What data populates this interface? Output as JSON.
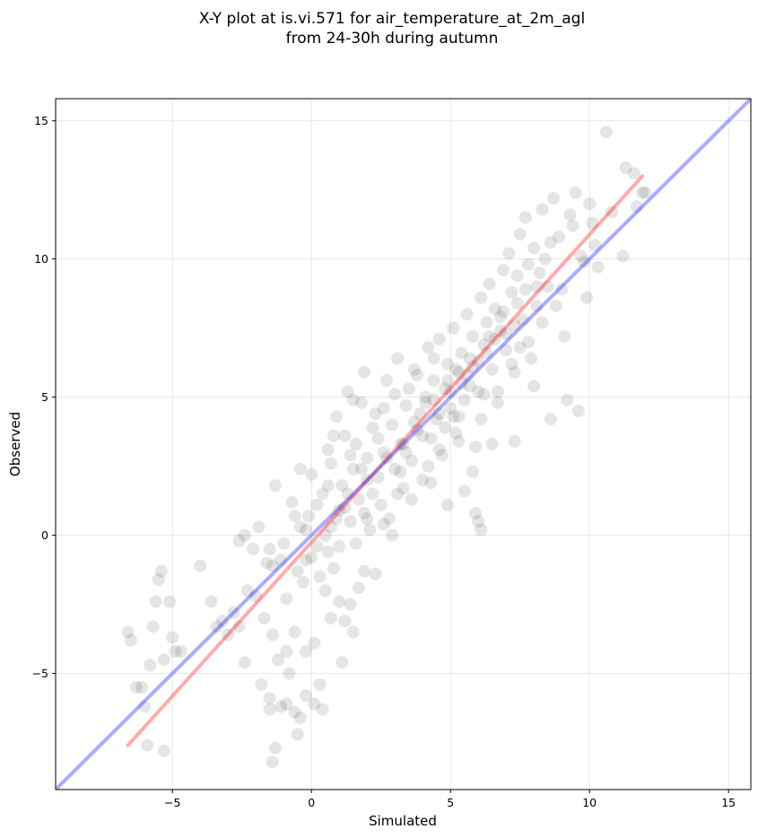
{
  "chart_data": {
    "type": "scatter",
    "title_lines": [
      "X-Y plot at is.vi.571 for air_temperature_at_2m_agl",
      "from 24-30h during autumn"
    ],
    "xlabel": "Simulated",
    "ylabel": "Observed",
    "xlim": [
      -9.2,
      15.8
    ],
    "ylim": [
      -9.2,
      15.8
    ],
    "xticks": [
      -5,
      0,
      5,
      10,
      15
    ],
    "yticks": [
      -5,
      0,
      5,
      10,
      15
    ],
    "tick_labels": [
      "−5",
      "0",
      "5",
      "10",
      "15"
    ],
    "grid": true,
    "colors": {
      "points": "#000000",
      "fit_line": "#ff0000",
      "identity_line": "#0000ff"
    },
    "fit_line": {
      "x": [
        -6.6,
        11.9
      ],
      "y": [
        -7.6,
        13.0
      ]
    },
    "identity_line": {
      "x": [
        -9.2,
        15.8
      ],
      "y": [
        -9.2,
        15.8
      ]
    },
    "points": [
      [
        -6.6,
        -3.5
      ],
      [
        -6.5,
        -3.8
      ],
      [
        -6.3,
        -5.5
      ],
      [
        -6.1,
        -5.5
      ],
      [
        -6.0,
        -6.2
      ],
      [
        -5.9,
        -7.6
      ],
      [
        -5.8,
        -4.7
      ],
      [
        -5.7,
        -3.3
      ],
      [
        -5.6,
        -2.4
      ],
      [
        -5.5,
        -1.6
      ],
      [
        -5.4,
        -1.3
      ],
      [
        -5.3,
        -7.8
      ],
      [
        -5.3,
        -4.5
      ],
      [
        -5.1,
        -2.4
      ],
      [
        -5.0,
        -3.7
      ],
      [
        -4.9,
        -4.2
      ],
      [
        -4.7,
        -4.2
      ],
      [
        -4.0,
        -1.1
      ],
      [
        -3.6,
        -2.4
      ],
      [
        -3.4,
        -3.3
      ],
      [
        -3.2,
        -3.1
      ],
      [
        -3.0,
        -3.6
      ],
      [
        -2.8,
        -2.8
      ],
      [
        -2.6,
        -3.3
      ],
      [
        -2.4,
        -4.6
      ],
      [
        -2.6,
        -0.2
      ],
      [
        -2.4,
        0.0
      ],
      [
        -2.1,
        -0.5
      ],
      [
        -1.9,
        0.3
      ],
      [
        -1.5,
        -0.5
      ],
      [
        -1.4,
        -1.1
      ],
      [
        -1.7,
        -3.0
      ],
      [
        -1.4,
        -3.6
      ],
      [
        -1.2,
        -4.5
      ],
      [
        -1.5,
        -5.9
      ],
      [
        -1.8,
        -5.4
      ],
      [
        -1.5,
        -6.3
      ],
      [
        -1.4,
        -8.2
      ],
      [
        -1.3,
        -7.7
      ],
      [
        -1.1,
        -6.2
      ],
      [
        -0.9,
        -6.1
      ],
      [
        -0.8,
        -5.0
      ],
      [
        -0.6,
        -6.4
      ],
      [
        -0.5,
        -7.2
      ],
      [
        -0.4,
        -6.6
      ],
      [
        -0.2,
        -5.8
      ],
      [
        0.1,
        -6.1
      ],
      [
        0.3,
        -5.4
      ],
      [
        0.4,
        -6.3
      ],
      [
        -0.6,
        -3.5
      ],
      [
        -0.2,
        -4.2
      ],
      [
        0.1,
        -3.9
      ],
      [
        -0.9,
        -4.2
      ],
      [
        -1.3,
        1.8
      ],
      [
        -0.7,
        1.2
      ],
      [
        -0.6,
        0.7
      ],
      [
        -0.4,
        2.4
      ],
      [
        -0.2,
        0.2
      ],
      [
        0.0,
        -0.8
      ],
      [
        0.3,
        -1.5
      ],
      [
        0.5,
        -2.0
      ],
      [
        0.6,
        -0.6
      ],
      [
        0.8,
        -1.2
      ],
      [
        1.0,
        -2.4
      ],
      [
        0.7,
        -3.0
      ],
      [
        1.2,
        -3.1
      ],
      [
        1.4,
        -2.5
      ],
      [
        1.7,
        -1.9
      ],
      [
        1.9,
        -1.3
      ],
      [
        2.3,
        -1.4
      ],
      [
        1.1,
        -4.6
      ],
      [
        1.5,
        -3.5
      ],
      [
        0.0,
        2.2
      ],
      [
        0.2,
        1.1
      ],
      [
        0.4,
        1.5
      ],
      [
        0.6,
        3.1
      ],
      [
        0.7,
        2.6
      ],
      [
        0.9,
        4.3
      ],
      [
        1.0,
        0.9
      ],
      [
        1.1,
        1.8
      ],
      [
        1.2,
        3.6
      ],
      [
        1.3,
        5.2
      ],
      [
        1.4,
        0.5
      ],
      [
        1.5,
        2.4
      ],
      [
        1.6,
        3.3
      ],
      [
        1.7,
        1.3
      ],
      [
        1.8,
        4.8
      ],
      [
        1.9,
        5.9
      ],
      [
        2.0,
        2.8
      ],
      [
        2.1,
        0.2
      ],
      [
        2.2,
        3.9
      ],
      [
        2.3,
        4.4
      ],
      [
        2.4,
        2.1
      ],
      [
        2.5,
        1.1
      ],
      [
        2.6,
        3.0
      ],
      [
        2.7,
        5.6
      ],
      [
        2.8,
        0.6
      ],
      [
        2.9,
        4.0
      ],
      [
        3.0,
        2.4
      ],
      [
        3.1,
        6.4
      ],
      [
        3.2,
        3.3
      ],
      [
        3.3,
        1.7
      ],
      [
        3.4,
        4.7
      ],
      [
        3.5,
        5.3
      ],
      [
        3.6,
        2.7
      ],
      [
        3.7,
        6.0
      ],
      [
        3.8,
        3.8
      ],
      [
        3.9,
        4.4
      ],
      [
        4.0,
        2.0
      ],
      [
        4.1,
        5.0
      ],
      [
        4.2,
        6.8
      ],
      [
        4.3,
        3.5
      ],
      [
        4.4,
        5.6
      ],
      [
        4.5,
        4.2
      ],
      [
        4.6,
        7.1
      ],
      [
        4.7,
        2.9
      ],
      [
        4.8,
        5.3
      ],
      [
        4.9,
        6.2
      ],
      [
        5.0,
        4.6
      ],
      [
        5.1,
        7.5
      ],
      [
        5.2,
        3.7
      ],
      [
        5.3,
        5.9
      ],
      [
        5.4,
        6.6
      ],
      [
        5.5,
        4.9
      ],
      [
        5.6,
        8.0
      ],
      [
        5.7,
        5.4
      ],
      [
        5.8,
        7.2
      ],
      [
        5.9,
        3.2
      ],
      [
        6.0,
        6.3
      ],
      [
        6.1,
        8.6
      ],
      [
        6.2,
        5.1
      ],
      [
        6.3,
        7.7
      ],
      [
        6.4,
        9.1
      ],
      [
        6.5,
        6.0
      ],
      [
        6.6,
        8.2
      ],
      [
        6.7,
        4.8
      ],
      [
        6.8,
        7.4
      ],
      [
        6.9,
        9.6
      ],
      [
        7.0,
        6.7
      ],
      [
        7.1,
        10.2
      ],
      [
        7.2,
        8.8
      ],
      [
        7.3,
        5.9
      ],
      [
        7.4,
        9.4
      ],
      [
        7.5,
        10.9
      ],
      [
        7.6,
        7.8
      ],
      [
        7.7,
        11.5
      ],
      [
        7.8,
        9.8
      ],
      [
        7.9,
        6.4
      ],
      [
        8.0,
        10.4
      ],
      [
        8.1,
        8.3
      ],
      [
        8.3,
        11.8
      ],
      [
        8.5,
        9.0
      ],
      [
        8.7,
        12.2
      ],
      [
        8.9,
        10.8
      ],
      [
        9.1,
        7.2
      ],
      [
        9.3,
        11.6
      ],
      [
        9.5,
        12.4
      ],
      [
        9.7,
        10.1
      ],
      [
        9.9,
        8.6
      ],
      [
        10.1,
        11.3
      ],
      [
        10.3,
        9.7
      ],
      [
        10.6,
        14.6
      ],
      [
        10.8,
        11.7
      ],
      [
        11.2,
        10.1
      ],
      [
        11.3,
        13.3
      ],
      [
        11.6,
        13.1
      ],
      [
        11.7,
        11.9
      ],
      [
        11.9,
        12.4
      ],
      [
        12.0,
        12.4
      ],
      [
        9.6,
        4.5
      ],
      [
        9.2,
        4.9
      ],
      [
        8.6,
        4.2
      ],
      [
        8.0,
        5.4
      ],
      [
        7.3,
        3.4
      ],
      [
        6.5,
        3.3
      ],
      [
        5.8,
        2.3
      ],
      [
        5.5,
        1.6
      ],
      [
        4.9,
        1.1
      ],
      [
        5.9,
        0.8
      ],
      [
        6.0,
        0.5
      ],
      [
        6.1,
        0.2
      ],
      [
        4.3,
        1.9
      ],
      [
        3.6,
        1.3
      ],
      [
        2.9,
        0.0
      ],
      [
        2.6,
        0.4
      ],
      [
        2.0,
        0.6
      ],
      [
        1.6,
        -0.3
      ],
      [
        -0.3,
        -1.7
      ],
      [
        -0.9,
        -2.3
      ],
      [
        -1.1,
        -0.9
      ],
      [
        -2.0,
        -2.2
      ],
      [
        -2.3,
        -2.0
      ],
      [
        0.8,
        3.6
      ],
      [
        1.5,
        4.9
      ],
      [
        2.6,
        4.6
      ],
      [
        3.4,
        3.0
      ],
      [
        4.1,
        4.8
      ],
      [
        4.8,
        3.9
      ],
      [
        5.3,
        4.3
      ],
      [
        5.6,
        5.8
      ],
      [
        6.2,
        6.9
      ],
      [
        6.8,
        7.9
      ],
      [
        7.4,
        8.4
      ],
      [
        8.2,
        9.5
      ],
      [
        8.4,
        10.0
      ],
      [
        9.0,
        8.9
      ],
      [
        9.8,
        9.9
      ],
      [
        10.2,
        10.5
      ],
      [
        3.0,
        5.1
      ],
      [
        3.8,
        5.8
      ],
      [
        4.4,
        6.4
      ],
      [
        4.6,
        4.4
      ],
      [
        5.0,
        5.2
      ],
      [
        5.2,
        6.0
      ],
      [
        5.4,
        5.5
      ],
      [
        5.7,
        6.4
      ],
      [
        6.0,
        5.2
      ],
      [
        6.3,
        6.6
      ],
      [
        6.6,
        7.1
      ],
      [
        7.0,
        7.3
      ],
      [
        7.5,
        6.8
      ],
      [
        2.0,
        2.0
      ],
      [
        2.2,
        1.5
      ],
      [
        1.8,
        2.4
      ],
      [
        1.2,
        1.0
      ],
      [
        0.9,
        0.6
      ],
      [
        0.5,
        0.0
      ],
      [
        0.2,
        -0.4
      ],
      [
        -0.2,
        -0.9
      ],
      [
        -0.5,
        -1.3
      ],
      [
        0.7,
        0.3
      ],
      [
        1.3,
        1.5
      ],
      [
        2.7,
        2.8
      ],
      [
        3.3,
        3.3
      ],
      [
        3.7,
        4.1
      ],
      [
        4.0,
        3.6
      ],
      [
        4.4,
        4.9
      ],
      [
        4.9,
        5.6
      ],
      [
        5.1,
        4.3
      ],
      [
        5.8,
        6.1
      ],
      [
        6.4,
        7.2
      ],
      [
        6.9,
        8.1
      ],
      [
        7.3,
        7.6
      ],
      [
        7.7,
        8.9
      ],
      [
        8.1,
        9.0
      ],
      [
        8.6,
        10.6
      ],
      [
        9.4,
        11.2
      ],
      [
        10.0,
        12.0
      ],
      [
        3.2,
        2.3
      ],
      [
        2.4,
        3.5
      ],
      [
        1.4,
        2.9
      ],
      [
        0.6,
        1.8
      ],
      [
        -0.1,
        0.7
      ],
      [
        -0.4,
        0.3
      ],
      [
        -1.0,
        -0.3
      ],
      [
        -1.6,
        -1.0
      ],
      [
        1.0,
        -0.4
      ],
      [
        1.9,
        0.8
      ],
      [
        3.1,
        1.5
      ],
      [
        4.2,
        2.5
      ],
      [
        4.6,
        3.1
      ],
      [
        5.3,
        3.4
      ],
      [
        6.1,
        4.2
      ],
      [
        6.7,
        5.2
      ],
      [
        7.2,
        6.2
      ],
      [
        7.8,
        7.0
      ],
      [
        8.3,
        7.7
      ],
      [
        8.8,
        8.3
      ]
    ]
  }
}
